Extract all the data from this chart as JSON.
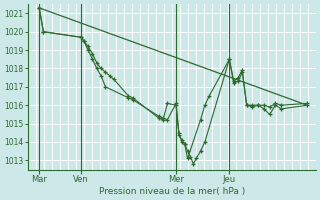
{
  "bg_color": "#cce8e8",
  "grid_color": "#ffffff",
  "line_color": "#2d6a2d",
  "marker_color": "#2d6a2d",
  "xlabel_text": "Pression niveau de la mer( hPa )",
  "ylim": [
    1012.5,
    1021.5
  ],
  "yticks": [
    1013,
    1014,
    1015,
    1016,
    1017,
    1018,
    1019,
    1020,
    1021
  ],
  "xlim": [
    0,
    1.0
  ],
  "xtick_labels": [
    "Mar",
    "Ven",
    "Mer",
    "Jeu"
  ],
  "xtick_positions": [
    0.04,
    0.185,
    0.515,
    0.7
  ],
  "vline_positions": [
    0.04,
    0.185,
    0.515,
    0.7
  ],
  "trend_line": {
    "x": [
      0.04,
      0.97
    ],
    "y": [
      1021.3,
      1016.0
    ]
  },
  "series2": {
    "x": [
      0.04,
      0.055,
      0.185,
      0.195,
      0.21,
      0.225,
      0.24,
      0.255,
      0.27,
      0.285,
      0.3,
      0.35,
      0.365,
      0.455,
      0.47,
      0.485,
      0.515,
      0.525,
      0.535,
      0.545,
      0.555,
      0.6,
      0.615,
      0.63,
      0.7,
      0.715,
      0.73,
      0.745,
      0.76,
      0.78,
      0.8,
      0.82,
      0.84,
      0.86,
      0.88,
      0.97
    ],
    "y": [
      1021.3,
      1020.0,
      1019.7,
      1019.5,
      1019.2,
      1018.8,
      1018.3,
      1018.0,
      1017.8,
      1017.6,
      1017.4,
      1016.5,
      1016.4,
      1015.3,
      1015.2,
      1016.1,
      1016.0,
      1014.5,
      1014.0,
      1013.9,
      1013.1,
      1015.2,
      1016.0,
      1016.5,
      1018.5,
      1017.2,
      1017.3,
      1017.8,
      1016.0,
      1016.0,
      1016.0,
      1015.8,
      1015.5,
      1016.0,
      1015.8,
      1016.0
    ]
  },
  "series3": {
    "x": [
      0.04,
      0.055,
      0.185,
      0.195,
      0.21,
      0.225,
      0.24,
      0.255,
      0.27,
      0.35,
      0.365,
      0.455,
      0.47,
      0.485,
      0.515,
      0.525,
      0.535,
      0.545,
      0.555,
      0.565,
      0.575,
      0.585,
      0.6,
      0.615,
      0.7,
      0.715,
      0.73,
      0.745,
      0.76,
      0.78,
      0.8,
      0.82,
      0.84,
      0.86,
      0.88,
      0.97
    ],
    "y": [
      1021.3,
      1020.0,
      1019.7,
      1019.5,
      1019.0,
      1018.5,
      1018.0,
      1017.6,
      1017.0,
      1016.4,
      1016.3,
      1015.4,
      1015.3,
      1015.2,
      1016.1,
      1014.4,
      1014.1,
      1013.9,
      1013.5,
      1013.2,
      1012.8,
      1013.1,
      1013.5,
      1014.0,
      1018.5,
      1017.3,
      1017.5,
      1017.9,
      1016.0,
      1015.9,
      1016.0,
      1016.0,
      1015.9,
      1016.1,
      1016.0,
      1016.1
    ]
  }
}
